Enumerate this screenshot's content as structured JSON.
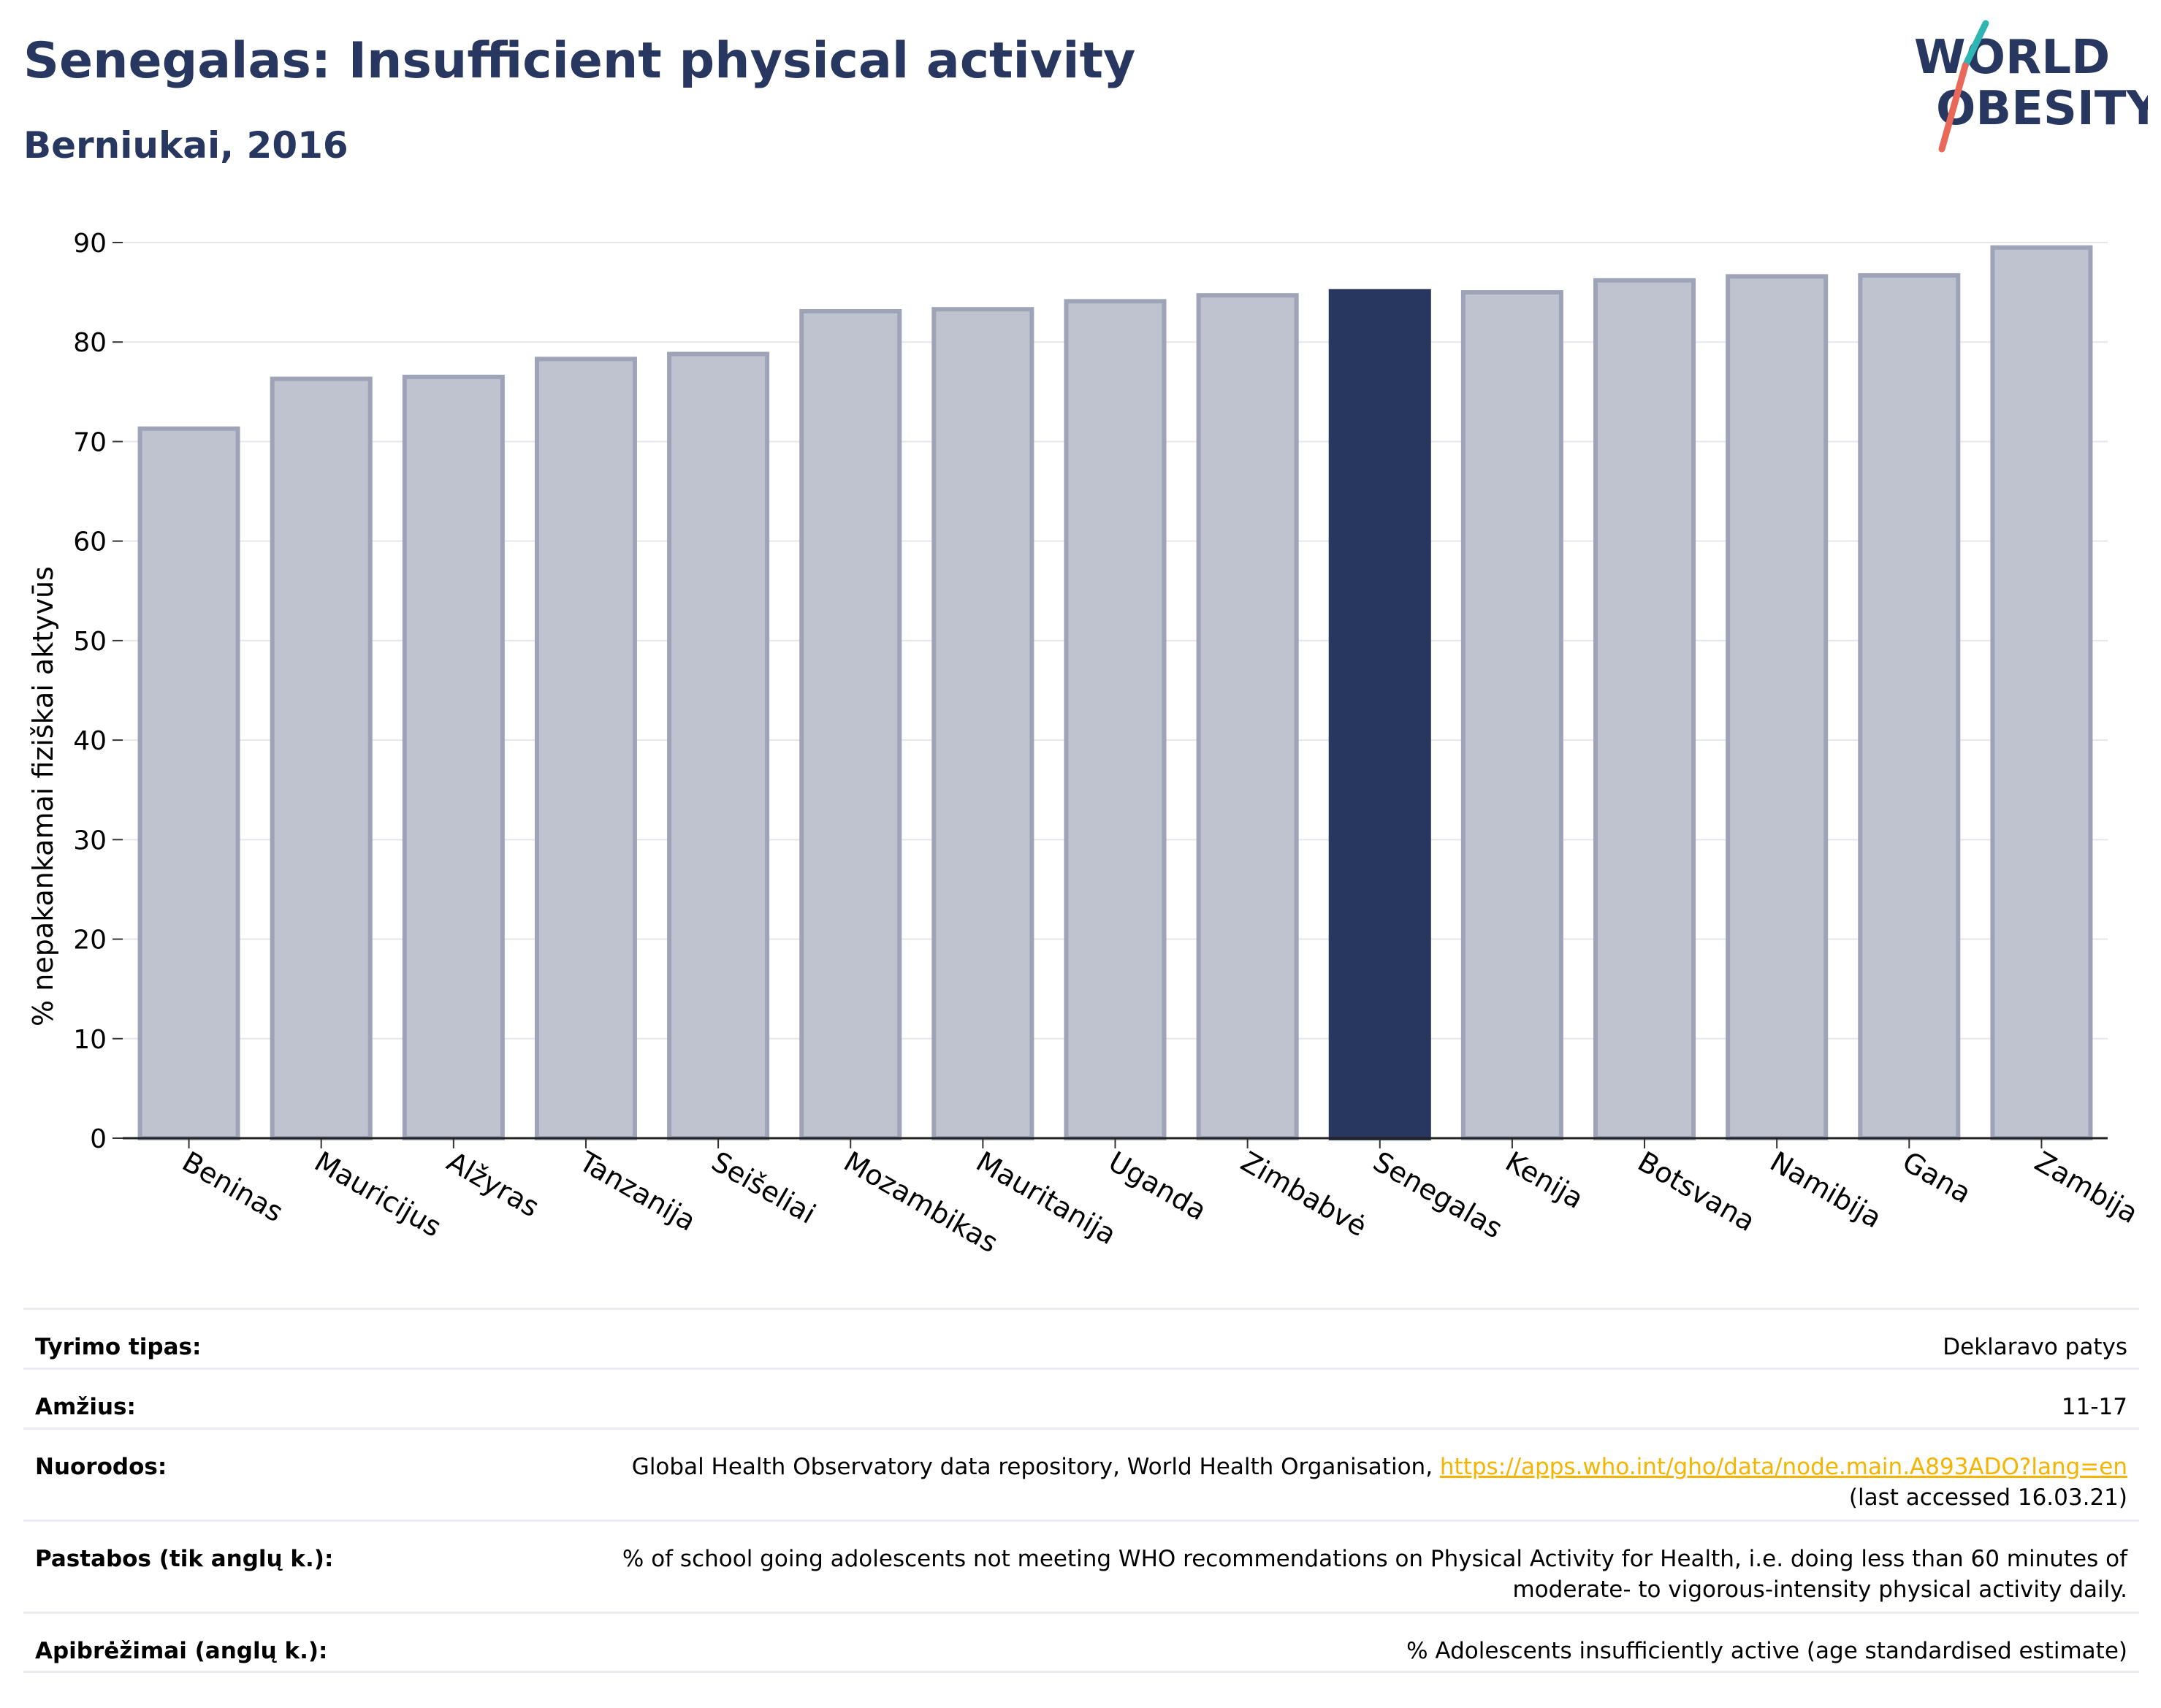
{
  "header": {
    "title": "Senegalas: Insufficient physical activity",
    "subtitle": "Berniukai, 2016"
  },
  "logo": {
    "line1": "WORLD",
    "line2": "OBESITY",
    "icon": "slash-mark"
  },
  "chart_data": {
    "type": "bar",
    "title": "",
    "xlabel": "",
    "ylabel": "% nepakankamai fiziškai aktyvūs",
    "ylim": [
      0,
      90
    ],
    "yticks": [
      0,
      10,
      20,
      30,
      40,
      50,
      60,
      70,
      80,
      90
    ],
    "grid": true,
    "highlight": "Senegalas",
    "colors": {
      "bar": "#bfc2cf",
      "bar_edge": "#9ea3b8",
      "highlight": "#283760"
    },
    "categories": [
      "Beninas",
      "Mauricijus",
      "Alžyras",
      "Tanzanija",
      "Seišeliai",
      "Mozambikas",
      "Mauritanija",
      "Uganda",
      "Zimbabvė",
      "Senegalas",
      "Kenija",
      "Botsvana",
      "Namibija",
      "Gana",
      "Zambija"
    ],
    "values": [
      71.3,
      76.3,
      76.5,
      78.3,
      78.8,
      83.1,
      83.3,
      84.1,
      84.7,
      85.1,
      85.0,
      86.2,
      86.6,
      86.7,
      89.5
    ]
  },
  "meta": {
    "rows": [
      {
        "label": "Tyrimo tipas:",
        "value": "Deklaravo patys"
      },
      {
        "label": "Amžius:",
        "value": "11-17"
      },
      {
        "label": "Nuorodos:",
        "value": "Global Health Observatory data repository, World Health Organisation, ",
        "link": "https://apps.who.int/gho/data/node.main.A893ADO?lang=en",
        "value2": "(last accessed 16.03.21)"
      },
      {
        "label": "Pastabos (tik anglų k.):",
        "value": "% of school going adolescents not meeting WHO recommendations on Physical Activity for Health, i.e. doing less than 60 minutes of moderate- to vigorous-intensity physical activity daily."
      },
      {
        "label": "Apibrėžimai (anglų k.):",
        "value": "% Adolescents insufficiently active (age standardised estimate)"
      }
    ]
  }
}
